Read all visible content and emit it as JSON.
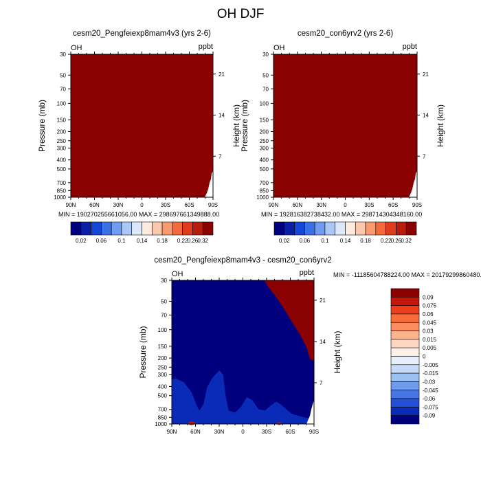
{
  "figure": {
    "title": "OH DJF"
  },
  "chart_data": [
    {
      "id": "panel-exp",
      "type": "heatmap",
      "title": "cesm20_Pengfeiexp8mam4v3 (yrs 2-6)",
      "variable": "OH",
      "units": "ppbt",
      "ylabel": "Pressure (mb)",
      "ylabel_right": "Height (km)",
      "xlabel": "",
      "x_ticks": [
        "90N",
        "60N",
        "30N",
        "0",
        "30S",
        "60S",
        "90S"
      ],
      "y_ticks": [
        30,
        50,
        70,
        100,
        150,
        200,
        250,
        300,
        400,
        500,
        700,
        850,
        1000
      ],
      "y_ticks_right": [
        7,
        14,
        21
      ],
      "y_scale": "log",
      "ylim": [
        1000,
        30
      ],
      "fill_color": "#8b0000",
      "description_values": {
        "field": "all contours above 0.32 ppbt except near-surface south-polar corner"
      },
      "stats": "MIN = 190270255661056.00   MAX = 298697661349888.00",
      "colorbar": {
        "labels": [
          "0.02",
          "0.06",
          "0.1",
          "0.14",
          "0.18",
          "0.22",
          "0.26",
          "0.32"
        ],
        "colors": [
          "#00007f",
          "#0a1fa6",
          "#1447d6",
          "#3b6fe8",
          "#6f9cf2",
          "#a9c8f7",
          "#dbe8fc",
          "#fdebe0",
          "#fcc8ad",
          "#f8996f",
          "#f26a3c",
          "#e13b1e",
          "#b81c0c",
          "#8b0000"
        ]
      }
    },
    {
      "id": "panel-ctl",
      "type": "heatmap",
      "title": "cesm20_con6yrv2 (yrs 2-6)",
      "variable": "OH",
      "units": "ppbt",
      "ylabel": "Pressure (mb)",
      "ylabel_right": "Height (km)",
      "xlabel": "",
      "x_ticks": [
        "90N",
        "60N",
        "30N",
        "0",
        "30S",
        "60S",
        "90S"
      ],
      "y_ticks": [
        30,
        50,
        70,
        100,
        150,
        200,
        250,
        300,
        400,
        500,
        700,
        850,
        1000
      ],
      "y_ticks_right": [
        7,
        14,
        21
      ],
      "y_scale": "log",
      "ylim": [
        1000,
        30
      ],
      "fill_color": "#8b0000",
      "stats": "MIN = 192816382738432.00   MAX = 298714304348160.00",
      "colorbar": {
        "labels": [
          "0.02",
          "0.06",
          "0.1",
          "0.14",
          "0.18",
          "0.22",
          "0.26",
          "0.32"
        ],
        "colors": [
          "#00007f",
          "#0a1fa6",
          "#1447d6",
          "#3b6fe8",
          "#6f9cf2",
          "#a9c8f7",
          "#dbe8fc",
          "#fdebe0",
          "#fcc8ad",
          "#f8996f",
          "#f26a3c",
          "#e13b1e",
          "#b81c0c",
          "#8b0000"
        ]
      }
    },
    {
      "id": "panel-diff",
      "type": "heatmap",
      "title": "cesm20_Pengfeiexp8mam4v3 - cesm20_con6yrv2",
      "variable": "OH",
      "units": "ppbt",
      "ylabel": "Pressure (mb)",
      "ylabel_right": "Height (km)",
      "xlabel": "",
      "x_ticks": [
        "90N",
        "60N",
        "30N",
        "0",
        "30S",
        "60S",
        "90S"
      ],
      "y_ticks": [
        30,
        50,
        70,
        100,
        150,
        200,
        250,
        300,
        400,
        500,
        700,
        850,
        1000
      ],
      "y_ticks_right": [
        7,
        14,
        21
      ],
      "y_scale": "log",
      "ylim": [
        1000,
        30
      ],
      "stats": "MIN = -11185604788224.00  MAX = 20179299860480.00",
      "colorbar": {
        "labels": [
          "0.09",
          "0.075",
          "0.06",
          "0.045",
          "0.03",
          "0.015",
          "0.005",
          "0",
          "-0.005",
          "-0.015",
          "-0.03",
          "-0.045",
          "-0.06",
          "-0.075",
          "-0.09"
        ],
        "colors": [
          "#8b0000",
          "#c4160b",
          "#ee3d1a",
          "#f86b3a",
          "#fb8e60",
          "#fcb48c",
          "#fdd7bf",
          "#fff1e6",
          "#e6f0fc",
          "#c6dbf7",
          "#9dc0f2",
          "#6e9bec",
          "#4576e3",
          "#2350d6",
          "#0a2bb8",
          "#00007f"
        ]
      }
    }
  ]
}
